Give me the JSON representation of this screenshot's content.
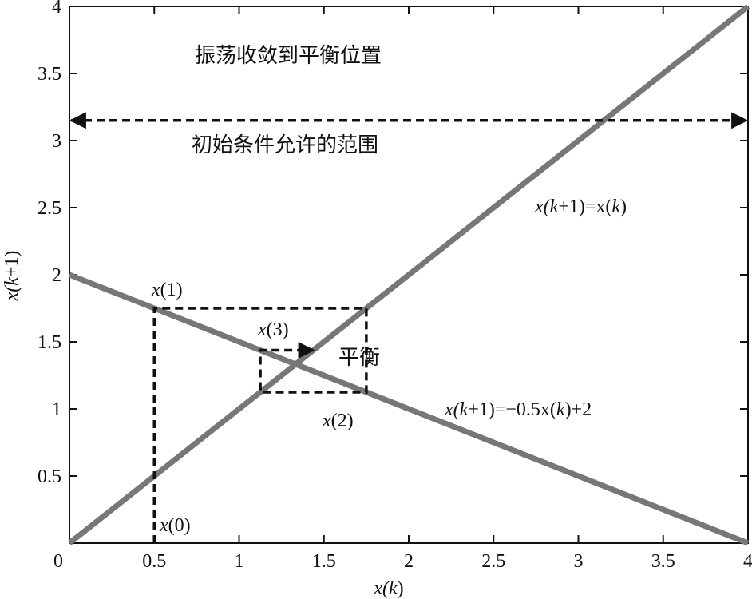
{
  "chart_data": {
    "type": "line",
    "xlim": [
      0,
      4
    ],
    "ylim": [
      0,
      4
    ],
    "x_ticks": [
      "0",
      "0.5",
      "1",
      "1.5",
      "2",
      "2.5",
      "3",
      "3.5",
      "4"
    ],
    "y_ticks": [
      "0.5",
      "1",
      "1.5",
      "2",
      "2.5",
      "3",
      "3.5",
      "4"
    ],
    "xlabel": {
      "pre": "x(",
      "var": "k",
      "post": ")"
    },
    "ylabel": {
      "pre": "x(",
      "var": "k",
      "post": "+1)"
    },
    "series": [
      {
        "x": [
          0,
          4
        ],
        "y": [
          0,
          4
        ],
        "color": "#777777"
      },
      {
        "x": [
          0,
          4
        ],
        "y": [
          2,
          0
        ],
        "color": "#777777"
      }
    ],
    "cobweb_path": [
      [
        0.5,
        0
      ],
      [
        0.5,
        1.75
      ],
      [
        1.75,
        1.75
      ],
      [
        1.75,
        1.125
      ],
      [
        1.125,
        1.125
      ],
      [
        1.125,
        1.4375
      ],
      [
        1.4375,
        1.4375
      ]
    ],
    "range_arrow": {
      "x": [
        0,
        4
      ],
      "y": 3.15
    },
    "annotations": {
      "title_text": "振荡收敛到平衡位置",
      "range_text": "初始条件允许的范围",
      "equilibrium": "平衡",
      "identity": {
        "a": "x(",
        "b": "k",
        "c": "+1)=x(",
        "d": "k",
        "e": ")"
      },
      "map": {
        "a": "x(",
        "b": "k",
        "c": "+1)=−0.5x(",
        "d": "k",
        "e": ")+2"
      },
      "x0": {
        "a": "x",
        "b": "(0)"
      },
      "x1": {
        "a": "x",
        "b": "(1)"
      },
      "x2": {
        "a": "x",
        "b": "(2)"
      },
      "x3": {
        "a": "x",
        "b": "(3)"
      }
    }
  }
}
